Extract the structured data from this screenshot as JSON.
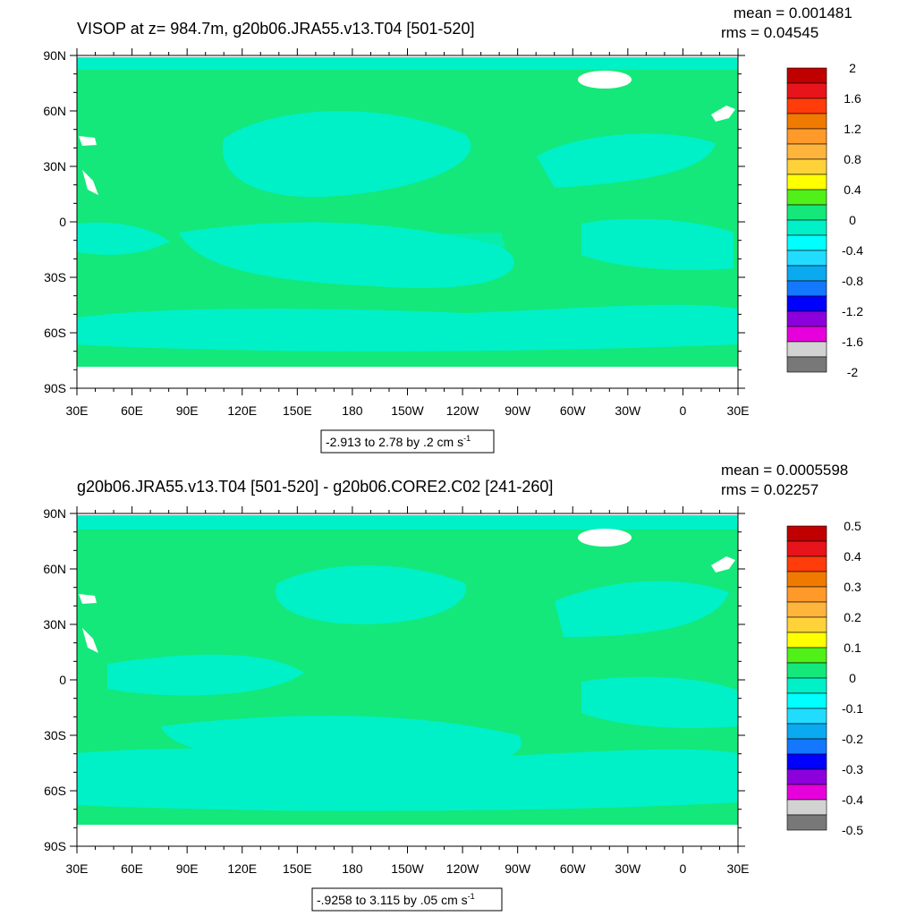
{
  "panels": [
    {
      "title": "VISOP at z= 984.7m, g20b06.JRA55.v13.T04 [501-520]",
      "mean": "mean = 0.001481",
      "rms": "rms = 0.04545",
      "range_text": "-2.913 to 2.78 by .2 cm s",
      "range_unit_sup": "-1",
      "colorbar_labels": [
        "2",
        "1.6",
        "1.2",
        "0.8",
        "0.4",
        "0",
        "-0.4",
        "-0.8",
        "-1.2",
        "-1.6",
        "-2"
      ]
    },
    {
      "title": "g20b06.JRA55.v13.T04 [501-520] - g20b06.CORE2.C02 [241-260]",
      "mean": "mean = 0.0005598",
      "rms": "rms = 0.02257",
      "range_text": "-.9258 to 3.115 by .05 cm s",
      "range_unit_sup": "-1",
      "colorbar_labels": [
        "0.5",
        "0.4",
        "0.3",
        "0.2",
        "0.1",
        "0",
        "-0.1",
        "-0.2",
        "-0.3",
        "-0.4",
        "-0.5"
      ]
    }
  ],
  "lat_labels": [
    "90N",
    "60N",
    "30N",
    "0",
    "30S",
    "60S",
    "90S"
  ],
  "lon_labels": [
    "30E",
    "60E",
    "90E",
    "120E",
    "150E",
    "180",
    "150W",
    "120W",
    "90W",
    "60W",
    "30W",
    "0",
    "30E"
  ],
  "colorbar_colors": [
    "#c00000",
    "#e8141b",
    "#ff3c0a",
    "#f07a00",
    "#ff9a2a",
    "#ffb43c",
    "#ffd23a",
    "#ffff00",
    "#50f018",
    "#14e87a",
    "#00f0c8",
    "#00ffff",
    "#22dcff",
    "#0aaaf0",
    "#1478ff",
    "#0000ff",
    "#8c00dc",
    "#e600dc",
    "#d2d2d2",
    "#787878"
  ],
  "colors": {
    "ocean_main": "#14e87a",
    "ocean_light": "#00f0c8",
    "land": "#ffffff"
  }
}
